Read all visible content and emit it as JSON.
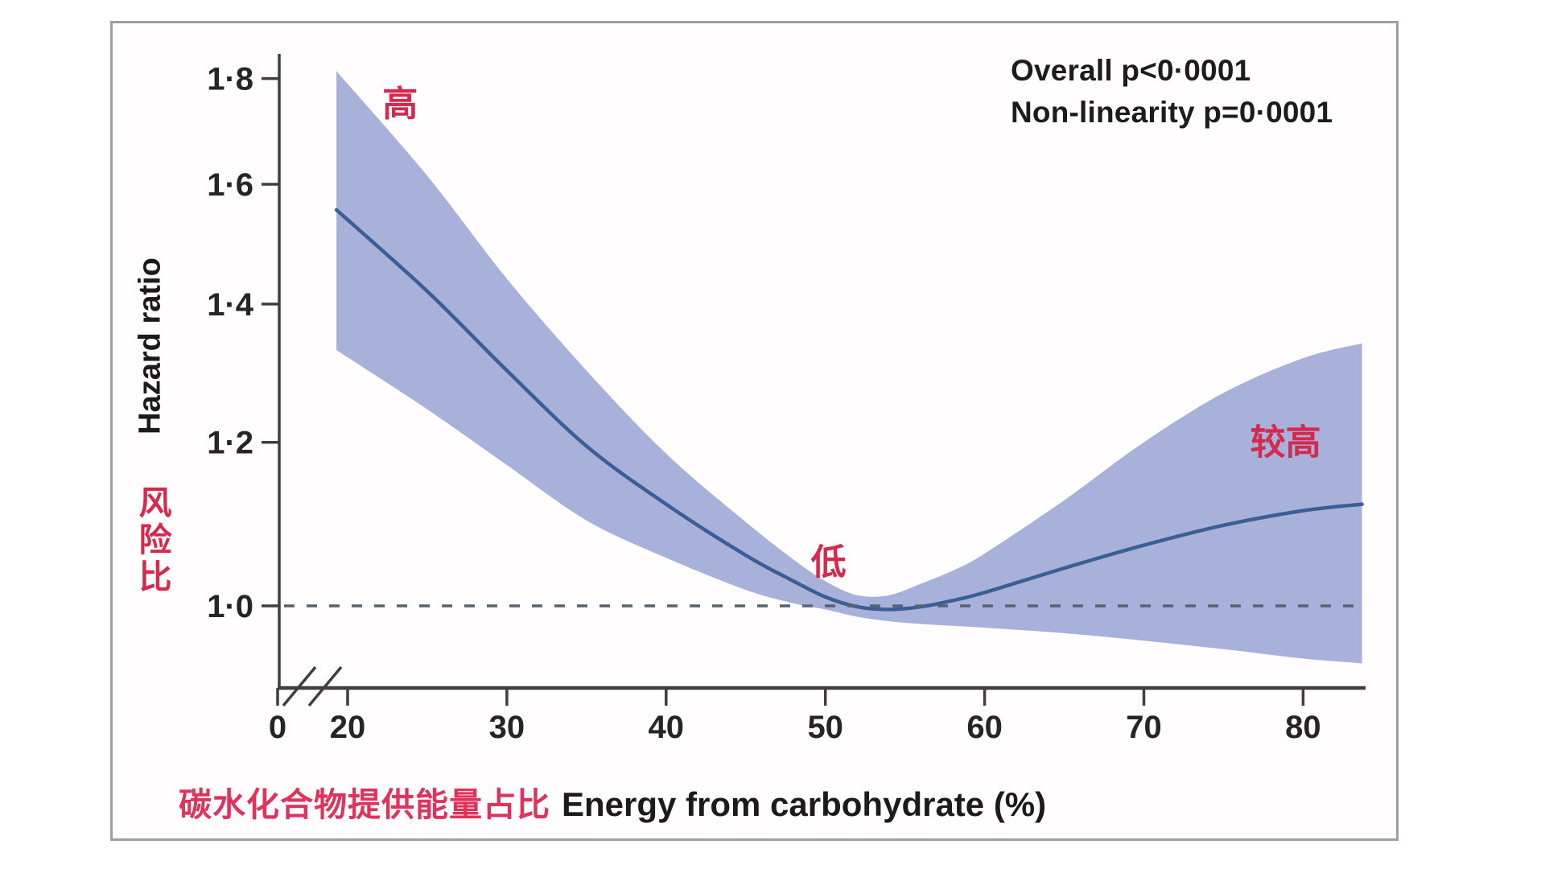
{
  "colors": {
    "band": "#a8b1d9",
    "hazard_line": "#3a5f96",
    "reference_dash": "#55626f",
    "axis": "#3f3f3f",
    "tick_text": "#252525",
    "red_label": "#d5294e",
    "frame_border": "#9e9e9e"
  },
  "chart_data": {
    "type": "line",
    "title": "",
    "x_label_cn": "碳水化合物提供能量占比",
    "x_label_en": "Energy from carbohydrate (%)",
    "y_label_en": "Hazard ratio",
    "y_label_cn": "风险比",
    "y_scale": "log",
    "x_range_shown": [
      20,
      83.7
    ],
    "x_axis_break_between": [
      0,
      20
    ],
    "y_range_shown": [
      0.93,
      1.85
    ],
    "reference_line_hr": 1.0,
    "grid": "off",
    "annotations": [
      "Overall p<0·0001",
      "Non-linearity p=0·0001"
    ],
    "x_ticks": {
      "values": [
        0,
        20,
        30,
        40,
        50,
        60,
        70,
        80
      ],
      "labels": [
        "0",
        "20",
        "30",
        "40",
        "50",
        "60",
        "70",
        "80"
      ]
    },
    "y_ticks": {
      "values": [
        1.0,
        1.2,
        1.4,
        1.6,
        1.8
      ],
      "labels": [
        "1·0",
        "1·2",
        "1·4",
        "1·6",
        "1·8"
      ]
    },
    "series": [
      {
        "name": "Hazard ratio with 95% CI band",
        "x_pct": [
          19.3,
          25,
          30,
          35,
          40,
          45,
          48,
          50,
          52,
          54,
          56,
          58,
          60,
          65,
          70,
          75,
          80,
          83.7
        ],
        "hr": [
          1.555,
          1.42,
          1.3,
          1.195,
          1.12,
          1.058,
          1.028,
          1.01,
          0.999,
          0.996,
          0.999,
          1.006,
          1.015,
          1.043,
          1.07,
          1.094,
          1.112,
          1.12
        ],
        "ci_low": [
          1.33,
          1.245,
          1.17,
          1.1,
          1.055,
          1.018,
          1.003,
          0.996,
          0.988,
          0.983,
          0.98,
          0.978,
          0.976,
          0.97,
          0.962,
          0.953,
          0.943,
          0.938
        ],
        "ci_high": [
          1.815,
          1.615,
          1.44,
          1.3,
          1.185,
          1.098,
          1.053,
          1.028,
          1.012,
          1.012,
          1.025,
          1.04,
          1.06,
          1.125,
          1.2,
          1.268,
          1.318,
          1.34
        ]
      }
    ],
    "region_labels": [
      {
        "text": "高",
        "x_pct": 23.3,
        "hr": 1.75
      },
      {
        "text": "低",
        "x_pct": 50.2,
        "hr": 1.05
      },
      {
        "text": "较高",
        "x_pct": 78.9,
        "hr": 1.2
      }
    ]
  }
}
